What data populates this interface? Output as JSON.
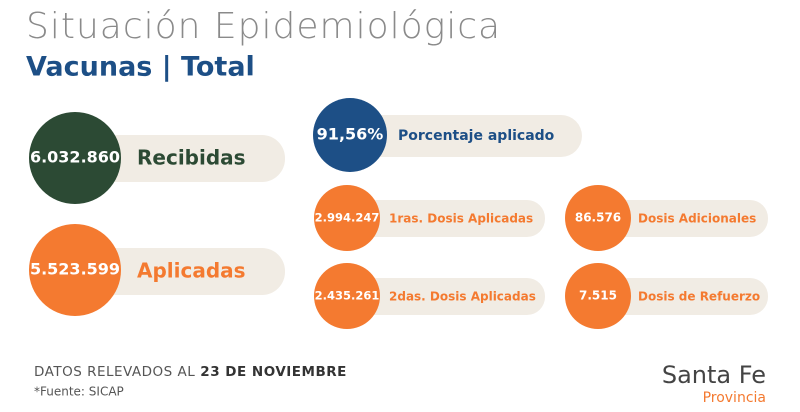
{
  "header": {
    "title": "Situación Epidemiológica",
    "subtitle": "Vacunas | Total"
  },
  "items": [
    {
      "value": "6.032.860",
      "label": "Recibidas"
    },
    {
      "value": "5.523.599",
      "label": "Aplicadas"
    },
    {
      "value": "91,56%",
      "label": "Porcentaje aplicado"
    },
    {
      "value": "2.994.247",
      "label": "1ras. Dosis Aplicadas"
    },
    {
      "value": "2.435.261",
      "label": "2das. Dosis Aplicadas"
    },
    {
      "value": "86.576",
      "label": "Dosis Adicionales"
    },
    {
      "value": "7.515",
      "label": "Dosis de Refuerzo"
    }
  ],
  "footer": {
    "prefix": "DATOS RELEVADOS AL",
    "date": "23 DE NOVIEMBRE",
    "source": "*Fuente: SICAP"
  },
  "logo": {
    "name": "Santa Fe",
    "sub": "Provincia"
  }
}
